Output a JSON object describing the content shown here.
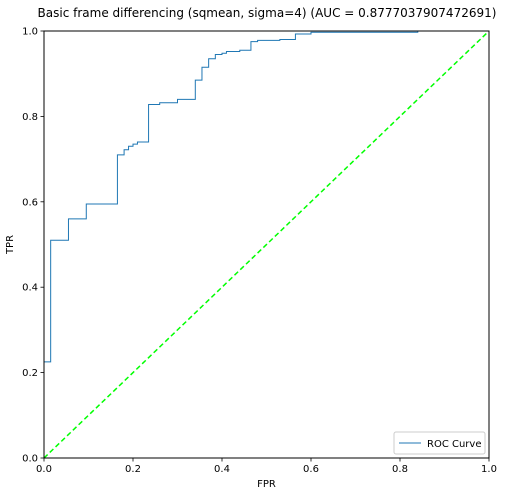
{
  "chart_data": {
    "type": "line",
    "title": "Basic frame differencing (sqmean, sigma=4) (AUC = 0.8777037907472691)",
    "xlabel": "FPR",
    "ylabel": "TPR",
    "xlim": [
      0.0,
      1.0
    ],
    "ylim": [
      0.0,
      1.0
    ],
    "xticks": [
      "0.0",
      "0.2",
      "0.4",
      "0.6",
      "0.8",
      "1.0"
    ],
    "yticks": [
      "0.0",
      "0.2",
      "0.4",
      "0.6",
      "0.8",
      "1.0"
    ],
    "grid": false,
    "legend_position": "lower right",
    "series": [
      {
        "name": "ROC Curve",
        "color": "#1f77b4",
        "style": "step",
        "points": [
          [
            0.0,
            0.0
          ],
          [
            0.0,
            0.225
          ],
          [
            0.015,
            0.225
          ],
          [
            0.015,
            0.51
          ],
          [
            0.055,
            0.51
          ],
          [
            0.055,
            0.56
          ],
          [
            0.095,
            0.56
          ],
          [
            0.095,
            0.595
          ],
          [
            0.165,
            0.595
          ],
          [
            0.165,
            0.71
          ],
          [
            0.18,
            0.71
          ],
          [
            0.18,
            0.722
          ],
          [
            0.19,
            0.722
          ],
          [
            0.19,
            0.73
          ],
          [
            0.2,
            0.73
          ],
          [
            0.2,
            0.735
          ],
          [
            0.21,
            0.735
          ],
          [
            0.21,
            0.74
          ],
          [
            0.235,
            0.74
          ],
          [
            0.235,
            0.828
          ],
          [
            0.26,
            0.828
          ],
          [
            0.26,
            0.832
          ],
          [
            0.3,
            0.832
          ],
          [
            0.3,
            0.84
          ],
          [
            0.34,
            0.84
          ],
          [
            0.34,
            0.885
          ],
          [
            0.355,
            0.885
          ],
          [
            0.355,
            0.915
          ],
          [
            0.37,
            0.915
          ],
          [
            0.37,
            0.935
          ],
          [
            0.385,
            0.935
          ],
          [
            0.385,
            0.945
          ],
          [
            0.4,
            0.945
          ],
          [
            0.4,
            0.948
          ],
          [
            0.41,
            0.948
          ],
          [
            0.41,
            0.952
          ],
          [
            0.44,
            0.952
          ],
          [
            0.44,
            0.955
          ],
          [
            0.465,
            0.955
          ],
          [
            0.465,
            0.975
          ],
          [
            0.48,
            0.975
          ],
          [
            0.48,
            0.978
          ],
          [
            0.53,
            0.978
          ],
          [
            0.53,
            0.98
          ],
          [
            0.565,
            0.98
          ],
          [
            0.565,
            0.993
          ],
          [
            0.6,
            0.993
          ],
          [
            0.6,
            0.997
          ],
          [
            0.84,
            0.997
          ],
          [
            0.84,
            1.0
          ],
          [
            1.0,
            1.0
          ]
        ]
      },
      {
        "name": "",
        "color": "#00ff00",
        "style": "dashed",
        "points": [
          [
            0.0,
            0.0
          ],
          [
            1.0,
            1.0
          ]
        ]
      }
    ],
    "legend": [
      {
        "label": "ROC Curve",
        "color": "#1f77b4"
      }
    ]
  }
}
